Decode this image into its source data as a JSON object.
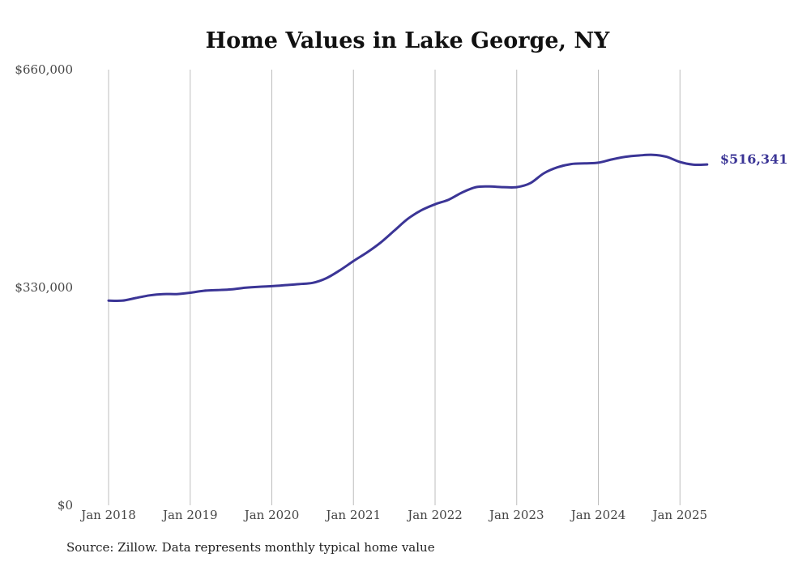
{
  "chart_data": {
    "type": "line",
    "title": "Home Values in Lake George, NY",
    "xlabel": "",
    "ylabel": "",
    "ylim": [
      0,
      660000
    ],
    "xlim": [
      "2018-01",
      "2025-05"
    ],
    "yticks": [
      {
        "value": 0,
        "label": "$0"
      },
      {
        "value": 330000,
        "label": "$330,000"
      },
      {
        "value": 660000,
        "label": "$660,000"
      }
    ],
    "xticks": [
      {
        "date": "2018-01",
        "label": "Jan 2018"
      },
      {
        "date": "2019-01",
        "label": "Jan 2019"
      },
      {
        "date": "2020-01",
        "label": "Jan 2020"
      },
      {
        "date": "2021-01",
        "label": "Jan 2021"
      },
      {
        "date": "2022-01",
        "label": "Jan 2022"
      },
      {
        "date": "2023-01",
        "label": "Jan 2023"
      },
      {
        "date": "2024-01",
        "label": "Jan 2024"
      },
      {
        "date": "2025-01",
        "label": "Jan 2025"
      }
    ],
    "grid": {
      "vertical": true,
      "horizontal": false
    },
    "series": [
      {
        "color": "#3b3596",
        "end_label": "$516,341",
        "points": [
          [
            "2018-01",
            310000
          ],
          [
            "2018-03",
            310000
          ],
          [
            "2018-05",
            314000
          ],
          [
            "2018-07",
            318000
          ],
          [
            "2018-09",
            320000
          ],
          [
            "2018-11",
            320000
          ],
          [
            "2019-01",
            322000
          ],
          [
            "2019-03",
            325000
          ],
          [
            "2019-05",
            326000
          ],
          [
            "2019-07",
            327000
          ],
          [
            "2019-09",
            329500
          ],
          [
            "2019-11",
            331000
          ],
          [
            "2020-01",
            332000
          ],
          [
            "2020-03",
            333500
          ],
          [
            "2020-05",
            335000
          ],
          [
            "2020-07",
            337000
          ],
          [
            "2020-09",
            344000
          ],
          [
            "2020-11",
            356000
          ],
          [
            "2021-01",
            370000
          ],
          [
            "2021-03",
            383000
          ],
          [
            "2021-05",
            398000
          ],
          [
            "2021-07",
            416000
          ],
          [
            "2021-09",
            434000
          ],
          [
            "2021-11",
            447000
          ],
          [
            "2022-01",
            456000
          ],
          [
            "2022-03",
            463000
          ],
          [
            "2022-05",
            474000
          ],
          [
            "2022-07",
            482000
          ],
          [
            "2022-09",
            483000
          ],
          [
            "2022-11",
            482000
          ],
          [
            "2023-01",
            482000
          ],
          [
            "2023-03",
            488000
          ],
          [
            "2023-05",
            503000
          ],
          [
            "2023-07",
            512000
          ],
          [
            "2023-09",
            517000
          ],
          [
            "2023-11",
            518000
          ],
          [
            "2024-01",
            519000
          ],
          [
            "2024-03",
            524000
          ],
          [
            "2024-05",
            528000
          ],
          [
            "2024-07",
            530000
          ],
          [
            "2024-09",
            531000
          ],
          [
            "2024-11",
            528000
          ],
          [
            "2025-01",
            520000
          ],
          [
            "2025-03",
            516000
          ],
          [
            "2025-05",
            516341
          ]
        ]
      }
    ]
  },
  "source_note": "Source: Zillow. Data represents monthly typical home value"
}
